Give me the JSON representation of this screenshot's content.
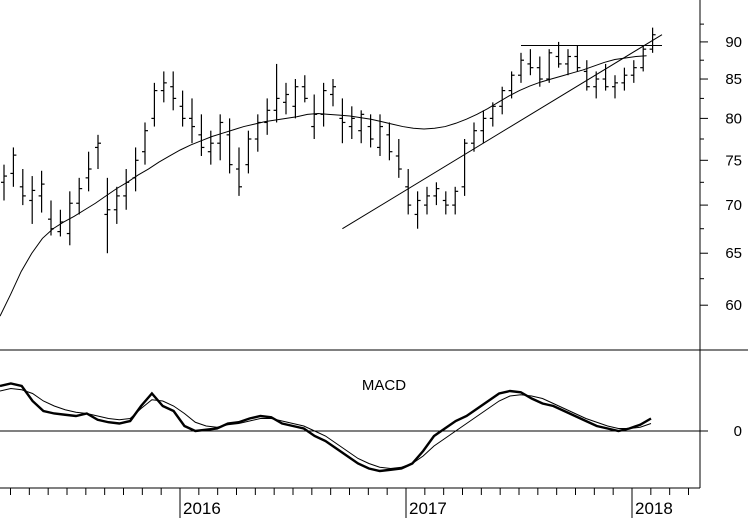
{
  "chart_data": [
    {
      "type": "ohlc",
      "x_axis": {
        "labels": [
          "2016",
          "2017",
          "2018"
        ]
      },
      "y_axis": {
        "ticks": [
          60,
          65,
          70,
          75,
          80,
          85,
          90
        ],
        "range": [
          56,
          96
        ],
        "scale": "log"
      },
      "price_bars": [
        [
          72.5,
          74.5,
          70.5,
          73.2
        ],
        [
          73.5,
          76.5,
          72.0,
          75.6
        ],
        [
          72.0,
          74.0,
          70.0,
          71.0
        ],
        [
          70.5,
          73.2,
          68.0,
          71.6
        ],
        [
          71.0,
          73.8,
          69.2,
          72.3
        ],
        [
          68.5,
          70.5,
          66.8,
          67.5
        ],
        [
          67.2,
          69.5,
          66.7,
          68.2
        ],
        [
          67.0,
          71.5,
          65.8,
          70.2
        ],
        [
          70.2,
          73.0,
          69.0,
          71.8
        ],
        [
          73.0,
          76.0,
          71.5,
          74.0
        ],
        [
          76.5,
          78.0,
          74.0,
          77.0
        ],
        [
          69.0,
          73.0,
          65.0,
          69.5
        ],
        [
          69.5,
          72.0,
          68.0,
          71.0
        ],
        [
          71.0,
          74.0,
          69.5,
          72.5
        ],
        [
          73.0,
          76.5,
          71.5,
          75.0
        ],
        [
          76.0,
          79.5,
          74.5,
          78.5
        ],
        [
          80.0,
          84.5,
          79.0,
          83.5
        ],
        [
          83.5,
          86.0,
          82.0,
          84.5
        ],
        [
          84.0,
          86.0,
          81.0,
          82.5
        ],
        [
          81.5,
          83.5,
          79.0,
          80.0
        ],
        [
          80.0,
          82.5,
          77.0,
          79.0
        ],
        [
          78.0,
          80.5,
          75.5,
          76.5
        ],
        [
          76.0,
          78.5,
          74.5,
          77.0
        ],
        [
          77.0,
          80.5,
          75.0,
          79.5
        ],
        [
          78.0,
          80.0,
          73.5,
          74.5
        ],
        [
          74.0,
          76.5,
          71.0,
          72.0
        ],
        [
          74.5,
          78.5,
          73.5,
          77.5
        ],
        [
          77.5,
          80.5,
          76.0,
          79.5
        ],
        [
          79.5,
          82.5,
          78.0,
          81.0
        ],
        [
          81.0,
          87.0,
          79.5,
          82.5
        ],
        [
          82.0,
          84.5,
          80.5,
          83.0
        ],
        [
          81.5,
          85.0,
          80.0,
          84.0
        ],
        [
          84.0,
          85.5,
          82.0,
          82.5
        ],
        [
          79.0,
          83.0,
          77.5,
          80.5
        ],
        [
          80.5,
          84.5,
          79.0,
          83.5
        ],
        [
          83.0,
          85.0,
          81.5,
          84.0
        ],
        [
          80.0,
          82.5,
          77.0,
          79.5
        ],
        [
          79.0,
          81.5,
          77.5,
          80.0
        ],
        [
          78.5,
          81.0,
          77.0,
          80.5
        ],
        [
          79.0,
          80.5,
          76.5,
          77.5
        ],
        [
          76.5,
          80.5,
          75.5,
          79.0
        ],
        [
          78.0,
          79.5,
          75.0,
          76.0
        ],
        [
          75.5,
          77.5,
          73.0,
          74.0
        ],
        [
          72.0,
          74.0,
          69.0,
          70.0
        ],
        [
          69.0,
          71.5,
          67.5,
          70.5
        ],
        [
          70.0,
          72.0,
          69.0,
          71.0
        ],
        [
          71.0,
          72.5,
          70.0,
          71.8
        ],
        [
          70.5,
          71.5,
          69.0,
          70.0
        ],
        [
          70.0,
          72.0,
          69.0,
          71.5
        ],
        [
          72.0,
          77.5,
          71.0,
          77.0
        ],
        [
          77.0,
          79.5,
          76.0,
          78.5
        ],
        [
          78.5,
          81.0,
          77.0,
          80.0
        ],
        [
          80.0,
          82.0,
          79.0,
          81.5
        ],
        [
          81.5,
          84.0,
          80.5,
          83.5
        ],
        [
          83.5,
          86.0,
          82.5,
          85.5
        ],
        [
          85.5,
          88.5,
          84.5,
          87.5
        ],
        [
          87.0,
          89.0,
          85.5,
          86.5
        ],
        [
          86.5,
          88.0,
          84.0,
          85.0
        ],
        [
          85.0,
          89.0,
          84.5,
          88.5
        ],
        [
          88.0,
          90.0,
          86.5,
          87.0
        ],
        [
          87.0,
          89.0,
          85.5,
          88.0
        ],
        [
          88.0,
          89.5,
          86.0,
          86.5
        ],
        [
          86.0,
          87.5,
          83.5,
          84.0
        ],
        [
          84.0,
          86.0,
          82.5,
          85.0
        ],
        [
          85.0,
          87.0,
          83.5,
          84.0
        ],
        [
          84.0,
          85.5,
          82.5,
          84.5
        ],
        [
          84.5,
          86.5,
          83.5,
          85.5
        ],
        [
          85.5,
          87.5,
          84.5,
          86.5
        ],
        [
          86.5,
          89.5,
          86.0,
          89.0
        ],
        [
          89.0,
          92.0,
          88.5,
          91.0
        ]
      ],
      "moving_average": [
        59.0,
        61.0,
        63.2,
        65.0,
        66.5,
        67.5,
        68.2,
        68.8,
        69.5,
        70.2,
        71.0,
        71.8,
        72.5,
        73.3,
        74.0,
        74.8,
        75.5,
        76.2,
        76.8,
        77.3,
        77.8,
        78.2,
        78.6,
        79.0,
        79.3,
        79.6,
        79.8,
        80.0,
        80.2,
        80.5,
        80.6,
        80.5,
        80.4,
        80.3,
        80.1,
        79.9,
        79.6,
        79.3,
        79.0,
        78.8,
        78.7,
        78.8,
        79.0,
        79.4,
        79.9,
        80.5,
        81.2,
        82.0,
        82.8,
        83.5,
        84.1,
        84.6,
        85.0,
        85.4,
        85.8,
        86.2,
        86.7,
        87.2,
        87.6,
        87.8,
        88.0,
        88.1
      ],
      "trendlines": [
        {
          "from": [
            36,
            67.5
          ],
          "to": [
            70,
            91.0
          ],
          "label": ""
        },
        {
          "from": [
            55,
            89.5
          ],
          "to": [
            70,
            89.5
          ],
          "label": ""
        }
      ]
    },
    {
      "type": "line",
      "title": "MACD",
      "y_axis": {
        "ticks": [
          0
        ]
      },
      "series": [
        {
          "values": [
            1.8,
            1.9,
            1.8,
            1.2,
            0.8,
            0.7,
            0.65,
            0.6,
            0.7,
            0.45,
            0.35,
            0.3,
            0.4,
            1.0,
            1.5,
            1.0,
            0.8,
            0.2,
            0.0,
            0.05,
            0.1,
            0.3,
            0.35,
            0.5,
            0.6,
            0.55,
            0.3,
            0.2,
            0.1,
            -0.2,
            -0.4,
            -0.7,
            -1.0,
            -1.3,
            -1.5,
            -1.6,
            -1.55,
            -1.5,
            -1.3,
            -0.8,
            -0.2,
            0.1,
            0.4,
            0.6,
            0.9,
            1.2,
            1.5,
            1.6,
            1.55,
            1.3,
            1.1,
            1.0,
            0.8,
            0.6,
            0.4,
            0.2,
            0.1,
            0.0,
            0.1,
            0.25,
            0.5
          ],
          "style": "thick"
        },
        {
          "values": [
            1.6,
            1.7,
            1.65,
            1.5,
            1.2,
            1.0,
            0.85,
            0.75,
            0.7,
            0.6,
            0.5,
            0.45,
            0.5,
            0.9,
            1.25,
            1.2,
            1.0,
            0.7,
            0.35,
            0.2,
            0.15,
            0.25,
            0.3,
            0.4,
            0.5,
            0.5,
            0.4,
            0.3,
            0.2,
            0.0,
            -0.2,
            -0.5,
            -0.8,
            -1.1,
            -1.3,
            -1.45,
            -1.5,
            -1.45,
            -1.3,
            -1.0,
            -0.6,
            -0.3,
            0.0,
            0.3,
            0.6,
            0.9,
            1.2,
            1.4,
            1.45,
            1.4,
            1.3,
            1.1,
            0.9,
            0.7,
            0.5,
            0.35,
            0.2,
            0.1,
            0.1,
            0.15,
            0.3
          ],
          "style": "thin"
        }
      ]
    }
  ]
}
